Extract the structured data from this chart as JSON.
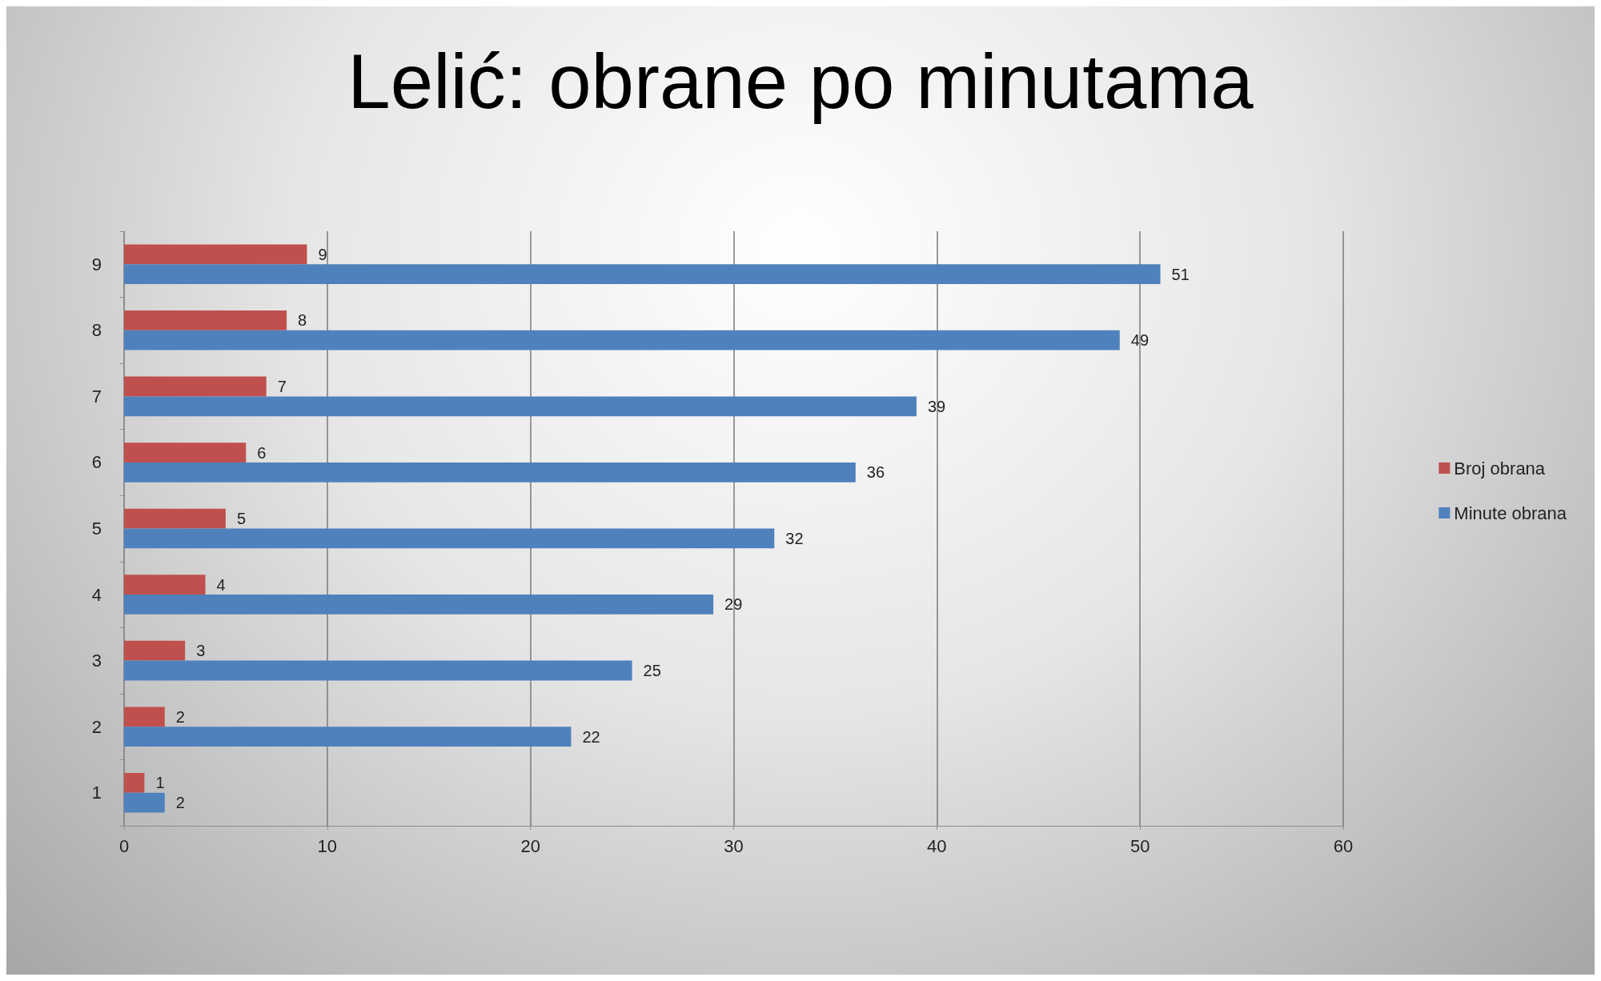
{
  "chart_data": {
    "type": "bar",
    "orientation": "horizontal",
    "title": "Lelić: obrane po minutama",
    "categories": [
      "9",
      "8",
      "7",
      "6",
      "5",
      "4",
      "3",
      "2",
      "1"
    ],
    "series": [
      {
        "name": "Broj obrana",
        "color": "#c0504d",
        "values": [
          9,
          8,
          7,
          6,
          5,
          4,
          3,
          2,
          1
        ]
      },
      {
        "name": "Minute obrana",
        "color": "#4f81bd",
        "values": [
          51,
          49,
          39,
          36,
          32,
          29,
          25,
          22,
          2
        ]
      }
    ],
    "xlim": [
      0,
      60
    ],
    "xticks": [
      0,
      10,
      20,
      30,
      40,
      50,
      60
    ],
    "grid": "x",
    "legend": "right",
    "data_labels": true
  }
}
